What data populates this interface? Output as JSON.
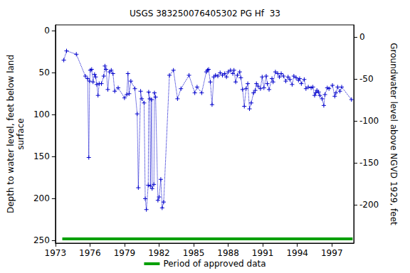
{
  "chart_data": {
    "type": "line",
    "title": "USGS 383250076405302 PG Hf  33",
    "y_label": "Depth to water level, feet below land\nsurface",
    "y2_label": "Groundwater level above NGVD 1929, feet",
    "xlim": [
      1973,
      1998.9
    ],
    "xticks": [
      1973,
      1976,
      1979,
      1982,
      1985,
      1988,
      1991,
      1994,
      1997
    ],
    "ylim": [
      -7,
      253
    ],
    "yticks": [
      0,
      50,
      100,
      150,
      200,
      250
    ],
    "y2lim": [
      14.6,
      -245.4
    ],
    "y2ticks": [
      0,
      -50,
      -100,
      -150,
      -200
    ],
    "grid": false,
    "legend": "bottom",
    "series": [
      {
        "color": "#0000cc",
        "marker": "plus",
        "line_style": "dotted",
        "x": [
          1973.73,
          1973.97,
          1974.82,
          1975.6,
          1975.8,
          1975.9,
          1975.97,
          1976.03,
          1976.15,
          1976.27,
          1976.4,
          1976.5,
          1976.6,
          1976.7,
          1976.8,
          1977.0,
          1977.2,
          1977.3,
          1977.4,
          1977.55,
          1977.7,
          1977.85,
          1978.0,
          1978.15,
          1978.45,
          1979.0,
          1979.2,
          1979.3,
          1979.4,
          1979.55,
          1979.9,
          1980.1,
          1980.2,
          1980.4,
          1980.5,
          1980.7,
          1980.8,
          1980.9,
          1981.06,
          1981.1,
          1981.2,
          1981.25,
          1981.35,
          1981.4,
          1981.55,
          1981.6,
          1981.7,
          1981.9,
          1982.0,
          1982.15,
          1982.27,
          1982.4,
          1982.9,
          1983.25,
          1983.6,
          1983.9,
          1984.6,
          1985.1,
          1985.3,
          1985.7,
          1986.1,
          1986.2,
          1986.3,
          1986.45,
          1986.6,
          1986.75,
          1986.9,
          1987.1,
          1987.3,
          1987.5,
          1987.7,
          1987.85,
          1988.0,
          1988.2,
          1988.4,
          1988.5,
          1988.65,
          1988.8,
          1989.0,
          1989.1,
          1989.25,
          1989.4,
          1989.55,
          1989.7,
          1989.85,
          1990.0,
          1990.2,
          1990.35,
          1990.45,
          1990.6,
          1990.8,
          1990.95,
          1991.1,
          1991.3,
          1991.4,
          1991.55,
          1991.8,
          1991.9,
          1992.1,
          1992.3,
          1992.45,
          1992.6,
          1992.8,
          1993.0,
          1993.2,
          1993.35,
          1993.55,
          1993.7,
          1993.9,
          1994.1,
          1994.2,
          1994.35,
          1994.6,
          1994.75,
          1994.95,
          1995.2,
          1995.35,
          1995.5,
          1995.6,
          1995.7,
          1995.85,
          1995.95,
          1996.15,
          1996.3,
          1996.4,
          1996.6,
          1996.75,
          1997.05,
          1997.25,
          1997.35,
          1997.5,
          1997.7,
          1997.85,
          1998.7
        ],
        "values": [
          35,
          24,
          28,
          54,
          57,
          151,
          60,
          47,
          46,
          61,
          52,
          55,
          64,
          77,
          63,
          63,
          54,
          42,
          46,
          70,
          49,
          47,
          51,
          72,
          68,
          80,
          76,
          51,
          75,
          60,
          69,
          99,
          187,
          72,
          81,
          86,
          200,
          213,
          184,
          73,
          81,
          185,
          82,
          188,
          183,
          74,
          79,
          202,
          198,
          177,
          211,
          204,
          53,
          47,
          81,
          69,
          53,
          74,
          67,
          74,
          49,
          47,
          46,
          61,
          88,
          55,
          53,
          54,
          50,
          53,
          51,
          55,
          49,
          47,
          51,
          47,
          61,
          53,
          49,
          56,
          70,
          90,
          69,
          63,
          93,
          86,
          74,
          71,
          63,
          66,
          69,
          55,
          68,
          54,
          63,
          70,
          57,
          61,
          49,
          51,
          55,
          51,
          54,
          60,
          55,
          58,
          64,
          54,
          56,
          59,
          57,
          63,
          58,
          69,
          67,
          68,
          67,
          77,
          74,
          71,
          73,
          77,
          81,
          89,
          76,
          68,
          69,
          65,
          78,
          74,
          67,
          72,
          67,
          82
        ]
      },
      {
        "name": "Period of approved data",
        "color": "#00a000",
        "marker": "none",
        "line_style": "solid",
        "x": [
          1973.6,
          1998.8
        ],
        "values": [
          248,
          248
        ]
      }
    ]
  }
}
